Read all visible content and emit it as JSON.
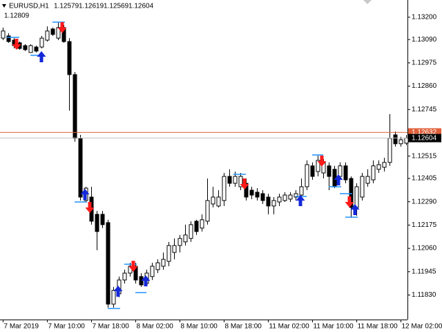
{
  "chart_data": {
    "type": "candlestick",
    "title": "EURUSD,H1",
    "header_ohlc": [
      1.12579,
      1.12619,
      1.12569,
      1.12604
    ],
    "indicator_value": 1.12809,
    "categories": [
      "7 Mar 2019",
      null,
      null,
      null,
      null,
      null,
      null,
      null,
      "7 Mar 10:00",
      null,
      null,
      null,
      null,
      null,
      null,
      null,
      "7 Mar 18:00",
      null,
      null,
      null,
      null,
      null,
      null,
      null,
      "8 Mar 02:00",
      null,
      null,
      null,
      null,
      null,
      null,
      null,
      "8 Mar 10:00",
      null,
      null,
      null,
      null,
      null,
      null,
      null,
      "8 Mar 18:00",
      null,
      null,
      null,
      null,
      null,
      null,
      null,
      "11 Mar 02:00",
      null,
      null,
      null,
      null,
      null,
      null,
      null,
      "11 Mar 10:00",
      null,
      null,
      null,
      null,
      null,
      null,
      null,
      "11 Mar 18:00",
      null,
      null,
      null,
      null,
      null,
      null,
      null,
      "12 Mar 02:00",
      null
    ],
    "open": [
      1.13097,
      1.13108,
      1.13087,
      1.13074,
      1.1306,
      1.13026,
      1.13053,
      1.13053,
      1.13087,
      1.13142,
      1.13097,
      1.13149,
      1.1308,
      1.12917,
      1.12603,
      1.12296,
      1.12313,
      1.12228,
      1.12228,
      1.12187,
      1.11785,
      1.11836,
      1.11904,
      1.11938,
      1.11972,
      1.11921,
      1.11887,
      1.11921,
      1.11955,
      1.11972,
      1.11996,
      1.1204,
      1.12074,
      1.12092,
      1.12109,
      1.12194,
      1.1216,
      1.12194,
      1.12279,
      1.12269,
      1.12296,
      1.12415,
      1.12381,
      1.12364,
      1.12381,
      1.12347,
      1.12337,
      1.1233,
      1.12313,
      1.12269,
      1.12289,
      1.12296,
      1.12303,
      1.12313,
      1.12323,
      1.12364,
      1.12467,
      1.12439,
      1.12432,
      1.12467,
      1.1245,
      1.12415,
      1.12467,
      1.12405,
      1.12262,
      1.12313,
      1.12381,
      1.12398,
      1.1245,
      1.1246,
      1.12484,
      1.1262,
      1.12576,
      1.12579
    ],
    "high": [
      1.13149,
      1.13121,
      1.13097,
      1.1308,
      1.13067,
      1.13067,
      1.1306,
      1.13108,
      1.13155,
      1.13149,
      1.13176,
      1.13162,
      1.13097,
      1.1293,
      1.1262,
      1.12364,
      1.12364,
      1.12245,
      1.12245,
      1.12201,
      1.1187,
      1.11921,
      1.11955,
      1.11989,
      1.11989,
      1.11938,
      1.11955,
      1.11989,
      1.12006,
      1.1204,
      1.12092,
      1.12109,
      1.12126,
      1.12177,
      1.12194,
      1.12201,
      1.12228,
      1.12405,
      1.12364,
      1.12347,
      1.12432,
      1.1245,
      1.12439,
      1.12432,
      1.12405,
      1.12364,
      1.12357,
      1.12347,
      1.1233,
      1.12313,
      1.1233,
      1.12337,
      1.12337,
      1.12347,
      1.12405,
      1.12494,
      1.12484,
      1.12518,
      1.12501,
      1.12484,
      1.12467,
      1.12484,
      1.12484,
      1.12415,
      1.12381,
      1.12432,
      1.1245,
      1.12494,
      1.12494,
      1.12507,
      1.12722,
      1.12637,
      1.1261,
      1.12619
    ],
    "low": [
      1.13087,
      1.13074,
      1.13046,
      1.1304,
      1.13033,
      1.13026,
      1.13026,
      1.13046,
      1.1308,
      1.13108,
      1.13087,
      1.13074,
      1.12739,
      1.12586,
      1.12296,
      1.12289,
      1.12177,
      1.12051,
      1.1216,
      1.11768,
      1.11768,
      1.11819,
      1.11887,
      1.11921,
      1.11887,
      1.1187,
      1.1188,
      1.11904,
      1.11938,
      1.11955,
      1.11972,
      1.12006,
      1.1204,
      1.12074,
      1.12092,
      1.12126,
      1.12143,
      1.12177,
      1.12262,
      1.12262,
      1.12269,
      1.12364,
      1.12364,
      1.12347,
      1.12296,
      1.12303,
      1.12296,
      1.12279,
      1.12228,
      1.12228,
      1.12269,
      1.12289,
      1.12289,
      1.12296,
      1.12313,
      1.12347,
      1.12398,
      1.12415,
      1.12405,
      1.12347,
      1.12357,
      1.12398,
      1.12381,
      1.12211,
      1.12221,
      1.12296,
      1.12364,
      1.12381,
      1.12432,
      1.12439,
      1.12467,
      1.12562,
      1.12562,
      1.12569
    ],
    "close": [
      1.13132,
      1.1308,
      1.1306,
      1.13046,
      1.1304,
      1.1306,
      1.13033,
      1.13097,
      1.13132,
      1.13115,
      1.13149,
      1.1308,
      1.12917,
      1.12603,
      1.12313,
      1.12357,
      1.12194,
      1.12143,
      1.12177,
      1.11785,
      1.11853,
      1.11904,
      1.11938,
      1.11972,
      1.11904,
      1.1188,
      1.11938,
      1.11972,
      1.11989,
      1.12006,
      1.12074,
      1.12074,
      1.12109,
      1.12126,
      1.12177,
      1.12143,
      1.12201,
      1.12296,
      1.12313,
      1.12313,
      1.12415,
      1.12381,
      1.12415,
      1.12415,
      1.12313,
      1.12323,
      1.12313,
      1.12296,
      1.12269,
      1.12296,
      1.12313,
      1.12323,
      1.12323,
      1.1233,
      1.12364,
      1.12473,
      1.12415,
      1.12494,
      1.12484,
      1.12415,
      1.12364,
      1.12467,
      1.12398,
      1.12262,
      1.12364,
      1.12415,
      1.12415,
      1.12467,
      1.12473,
      1.12484,
      1.12603,
      1.12576,
      1.12596,
      1.12604
    ],
    "bull_color": "#ffffff",
    "bear_color": "#000000",
    "ylim": [
      1.11709,
      1.13285
    ],
    "yticks": [
      {
        "value": 1.132,
        "label": "1.13200"
      },
      {
        "value": 1.1309,
        "label": "1.13090"
      },
      1.12975,
      {
        "value": 1.1286,
        "label": "1.12860"
      },
      1.12745,
      1.12515,
      1.12405,
      {
        "value": 1.1229,
        "label": "1.12290"
      },
      1.12175,
      {
        "value": 1.1206,
        "label": "1.12060"
      },
      1.11945,
      {
        "value": 1.1183,
        "label": "1.11830"
      }
    ],
    "ask_line": 1.12632,
    "ask_color": "#e0603a",
    "bid_color": "#c0c0c0"
  }
}
